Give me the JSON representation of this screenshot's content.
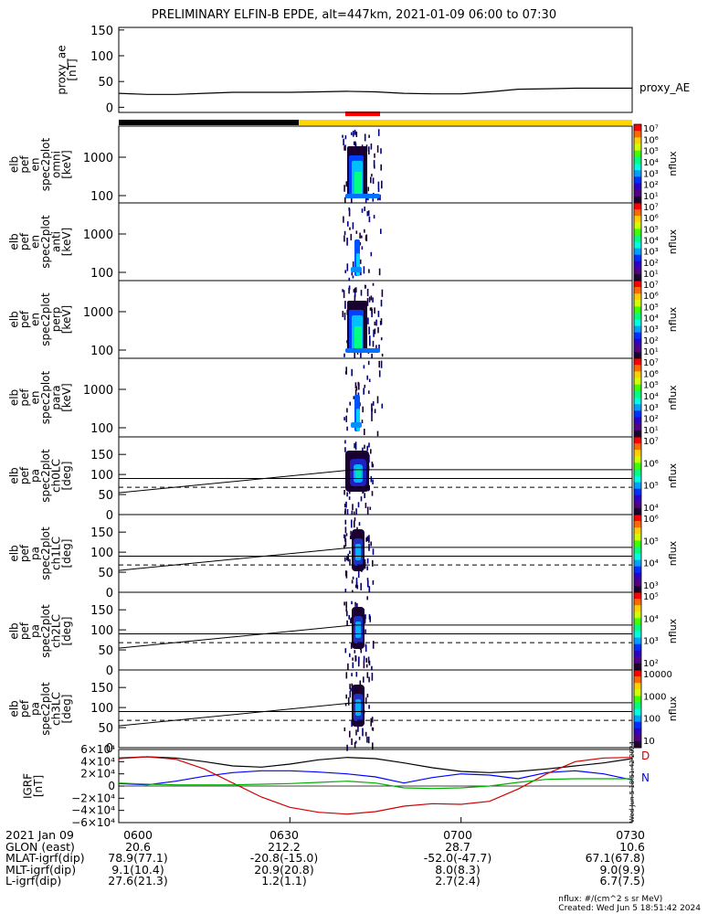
{
  "title": "PRELIMINARY ELFIN-B EPDE, alt=447km, 2021-01-09 06:00 to 07:30",
  "colors": {
    "night_bar": "#000000",
    "day_bar": "#ffd700",
    "science_zone": "#ff0000",
    "igrf_x": "#000000",
    "igrf_y": "#0000ff",
    "igrf_z": "#d00000",
    "igrf_total": "#00b000"
  },
  "chart_data": [
    {
      "type": "line",
      "id": "proxy_ae",
      "ylabel": [
        "proxy_ae",
        "[nT]"
      ],
      "series_label": "proxy_AE",
      "yticks": [
        "150",
        "100",
        "50",
        "0"
      ],
      "ylim": [
        -10,
        155
      ],
      "x_minutes": [
        0,
        5,
        10,
        15,
        20,
        25,
        30,
        35,
        40,
        45,
        50,
        55,
        60,
        65,
        70,
        75,
        80,
        85,
        90
      ],
      "values": [
        27,
        25,
        25,
        27,
        29,
        29,
        29,
        30,
        31,
        30,
        27,
        26,
        26,
        30,
        35,
        36,
        37,
        37,
        37
      ]
    },
    {
      "type": "heatmap",
      "id": "spec_omni",
      "ylabel": [
        "elb",
        "pef",
        "en",
        "spec2plot",
        "omni",
        "[keV]"
      ],
      "yticks": [
        "1000",
        "100"
      ],
      "colorbar": {
        "label": "nflux",
        "ticks": [
          "10⁷",
          "10⁶",
          "10⁵",
          "10⁴",
          "10³",
          "10²",
          "10¹"
        ]
      }
    },
    {
      "type": "heatmap",
      "id": "spec_anti",
      "ylabel": [
        "elb",
        "pef",
        "en",
        "spec2plot",
        "anti",
        "[keV]"
      ],
      "yticks": [
        "1000",
        "100"
      ],
      "colorbar": {
        "label": "nflux",
        "ticks": [
          "10⁷",
          "10⁶",
          "10⁵",
          "10⁴",
          "10³",
          "10²",
          "10¹"
        ]
      }
    },
    {
      "type": "heatmap",
      "id": "spec_perp",
      "ylabel": [
        "elb",
        "pef",
        "en",
        "spec2plot",
        "perp",
        "[keV]"
      ],
      "yticks": [
        "1000",
        "100"
      ],
      "colorbar": {
        "label": "nflux",
        "ticks": [
          "10⁷",
          "10⁶",
          "10⁵",
          "10⁴",
          "10³",
          "10²",
          "10¹"
        ]
      }
    },
    {
      "type": "heatmap",
      "id": "spec_para",
      "ylabel": [
        "elb",
        "pef",
        "en",
        "spec2plot",
        "para",
        "[keV]"
      ],
      "yticks": [
        "1000",
        "100"
      ],
      "colorbar": {
        "label": "nflux",
        "ticks": [
          "10⁷",
          "10⁶",
          "10⁵",
          "10⁴",
          "10³",
          "10²",
          "10¹"
        ]
      }
    },
    {
      "type": "heatmap",
      "id": "pa_ch0",
      "ylabel": [
        "elb",
        "pef",
        "pa",
        "spec2plot",
        "ch0LC",
        "[deg]"
      ],
      "yticks": [
        "150",
        "100",
        "50",
        "0"
      ],
      "colorbar": {
        "label": "nflux",
        "ticks": [
          "10⁷",
          "10⁶",
          "10⁵",
          "10⁴"
        ]
      }
    },
    {
      "type": "heatmap",
      "id": "pa_ch1",
      "ylabel": [
        "elb",
        "pef",
        "pa",
        "spec2plot",
        "ch1LC",
        "[deg]"
      ],
      "yticks": [
        "150",
        "100",
        "50",
        "0"
      ],
      "colorbar": {
        "label": "nflux",
        "ticks": [
          "10⁶",
          "10⁵",
          "10⁴",
          "10³"
        ]
      }
    },
    {
      "type": "heatmap",
      "id": "pa_ch2",
      "ylabel": [
        "elb",
        "pef",
        "pa",
        "spec2plot",
        "ch2LC",
        "[deg]"
      ],
      "yticks": [
        "150",
        "100",
        "50",
        "0"
      ],
      "colorbar": {
        "label": "nflux",
        "ticks": [
          "10⁵",
          "10⁴",
          "10³",
          "10²"
        ]
      }
    },
    {
      "type": "heatmap",
      "id": "pa_ch3",
      "ylabel": [
        "elb",
        "pef",
        "pa",
        "spec2plot",
        "ch3LC",
        "[deg]"
      ],
      "yticks": [
        "150",
        "100",
        "50",
        "0"
      ],
      "colorbar": {
        "label": "nflux",
        "ticks": [
          "10000",
          "1000",
          "100",
          "10"
        ]
      }
    },
    {
      "type": "line",
      "id": "igrf",
      "ylabel": [
        "IGRF",
        "[nT]"
      ],
      "yticks": [
        "6×10⁴",
        "4×10⁴",
        "2×10⁴",
        "0",
        "−2×10⁴",
        "−4×10⁴",
        "−6×10⁴"
      ],
      "ylim": [
        -60000,
        60000
      ],
      "legend": [
        "D",
        "N"
      ],
      "side_text": "Wed Jun 5 18:51:42 2024",
      "x_minutes": [
        0,
        5,
        10,
        15,
        20,
        25,
        30,
        35,
        40,
        45,
        50,
        55,
        60,
        65,
        70,
        75,
        80,
        85,
        90
      ],
      "series": [
        {
          "key": "x",
          "values": [
            46000,
            48000,
            46000,
            40000,
            33000,
            31000,
            36000,
            43000,
            47000,
            45000,
            38000,
            30000,
            24000,
            22000,
            24000,
            28000,
            33000,
            38000,
            45000
          ]
        },
        {
          "key": "y",
          "values": [
            4000,
            2000,
            8000,
            16000,
            22000,
            25000,
            25000,
            23000,
            20000,
            15000,
            5000,
            14000,
            20000,
            18000,
            12000,
            22000,
            25000,
            20000,
            10000
          ]
        },
        {
          "key": "z",
          "values": [
            45000,
            48000,
            44000,
            28000,
            5000,
            -18000,
            -35000,
            -43000,
            -46000,
            -42000,
            -33000,
            -29000,
            -30000,
            -25000,
            -5000,
            20000,
            40000,
            46000,
            47000
          ]
        },
        {
          "key": "total",
          "values": [
            5000,
            3000,
            2000,
            2000,
            2000,
            3000,
            4000,
            6000,
            8000,
            5000,
            -3000,
            -4000,
            -3000,
            0,
            6000,
            11000,
            12000,
            12000,
            12000
          ]
        }
      ]
    }
  ],
  "bottom_table": {
    "rows": [
      [
        "2021 Jan 09",
        "0600",
        "0630",
        "0700",
        "0730"
      ],
      [
        "GLON (east)",
        "20.6",
        "212.2",
        "28.7",
        "10.6"
      ],
      [
        "MLAT-igrf(dip)",
        "78.9(77.1)",
        "-20.8(-15.0)",
        "-52.0(-47.7)",
        "67.1(67.8)"
      ],
      [
        "MLT-igrf(dip)",
        "9.1(10.4)",
        "20.9(20.8)",
        "8.0(8.3)",
        "9.0(9.9)"
      ],
      [
        "L-igrf(dip)",
        "27.6(21.3)",
        "1.2(1.1)",
        "2.7(2.4)",
        "6.7(7.5)"
      ]
    ]
  },
  "footer": {
    "units": "nflux: #/(cm^2 s sr MeV)",
    "created": "Created: Wed Jun  5 18:51:42 2024"
  }
}
